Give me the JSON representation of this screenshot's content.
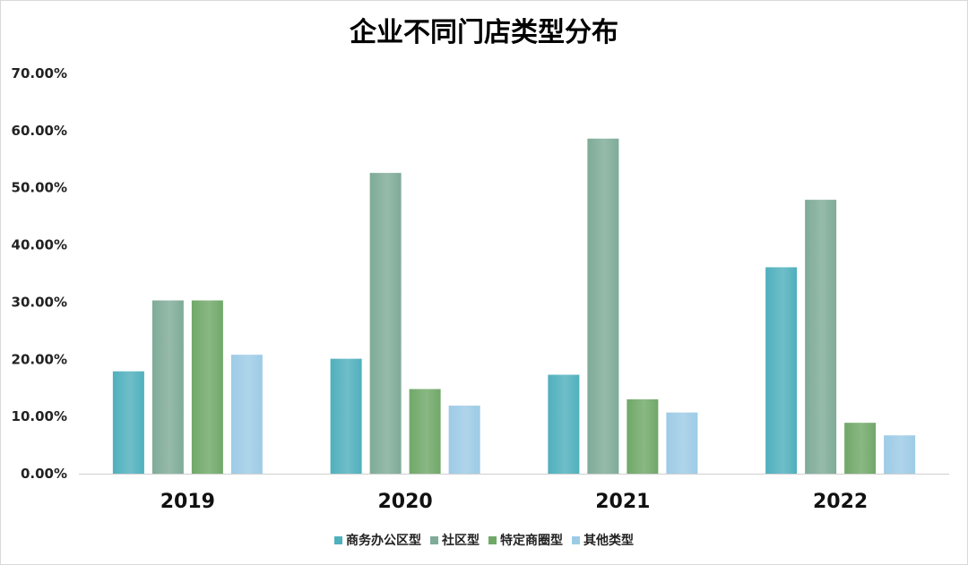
{
  "chart_data": {
    "type": "bar",
    "title": "企业不同门店类型分布",
    "categories": [
      "2019",
      "2020",
      "2021",
      "2022"
    ],
    "series": [
      {
        "name": "商务办公区型",
        "color": "#4fb0bd",
        "values": [
          17.9,
          20.1,
          17.3,
          36.1
        ]
      },
      {
        "name": "社区型",
        "color": "#7fab98",
        "values": [
          30.3,
          52.6,
          58.6,
          47.9
        ]
      },
      {
        "name": "特定商圈型",
        "color": "#70a868",
        "values": [
          30.3,
          14.8,
          13.0,
          8.9
        ]
      },
      {
        "name": "其他类型",
        "color": "#9dcbe6",
        "values": [
          20.8,
          11.9,
          10.7,
          6.7
        ]
      }
    ],
    "ylim": [
      0,
      70
    ],
    "yticks": [
      "0.00%",
      "10.00%",
      "20.00%",
      "30.00%",
      "40.00%",
      "50.00%",
      "60.00%",
      "70.00%"
    ],
    "xlabel": "",
    "ylabel": "",
    "grid": false,
    "legend_position": "bottom"
  }
}
